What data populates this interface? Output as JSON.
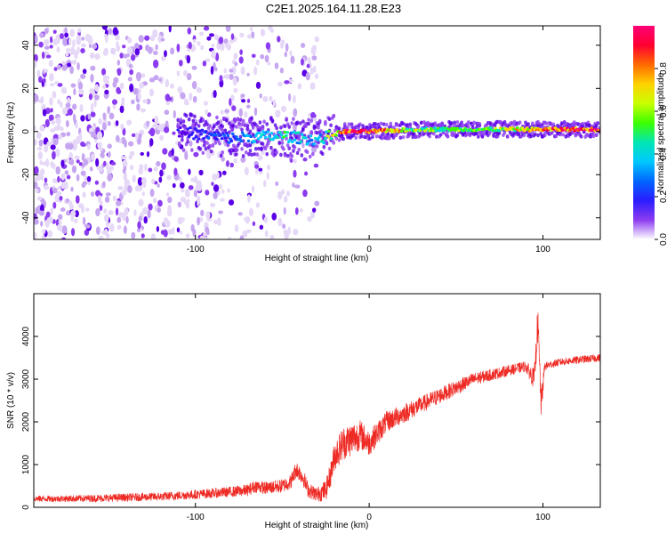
{
  "title": "C2E1.2025.164.11.28.E23",
  "colors": {
    "spectrum": [
      "#ffffff",
      "#e6d8f7",
      "#c6a6f1",
      "#8c3cf0",
      "#5a00e6",
      "#2a1cff",
      "#0066ff",
      "#00c8ff",
      "#00e6b4",
      "#3cff00",
      "#c8ff00",
      "#ffd200",
      "#ff6a00",
      "#ff0030",
      "#ff0078"
    ],
    "snr_line": "#ee2a24"
  },
  "chart_data": [
    {
      "type": "heatmap",
      "xlabel": "Height of straight line (km)",
      "ylabel": "Frequency (Hz)",
      "xlim": [
        -193,
        133
      ],
      "ylim": [
        -50,
        49
      ],
      "xticks": [
        -100,
        0,
        100
      ],
      "yticks": [
        -40,
        -20,
        0,
        20,
        40
      ],
      "colorbar": {
        "label": "Normalized spectral amplitude",
        "range": [
          0,
          1
        ],
        "ticks": [
          0.0,
          0.2,
          0.4,
          0.6,
          0.8
        ]
      },
      "features": {
        "noise_region_x": [
          -193,
          -30
        ],
        "scattered_region_x": [
          -60,
          -30
        ],
        "signal_band": [
          {
            "x": -110,
            "freq": 0,
            "amplitude": 0.15
          },
          {
            "x": -80,
            "freq": -3,
            "amplitude": 0.25
          },
          {
            "x": -50,
            "freq": -2,
            "amplitude": 0.45
          },
          {
            "x": -30,
            "freq": -4,
            "amplitude": 0.35
          },
          {
            "x": -15,
            "freq": 0,
            "amplitude": 0.9
          },
          {
            "x": 0,
            "freq": 0,
            "amplitude": 0.95
          },
          {
            "x": 30,
            "freq": 1,
            "amplitude": 0.55
          },
          {
            "x": 60,
            "freq": 1,
            "amplitude": 0.5
          },
          {
            "x": 100,
            "freq": 1,
            "amplitude": 0.8
          },
          {
            "x": 130,
            "freq": 1,
            "amplitude": 0.95
          }
        ]
      }
    },
    {
      "type": "line",
      "xlabel": "Height of straight line (km)",
      "ylabel": "SNR (10 * v/v)",
      "xlim": [
        -193,
        133
      ],
      "ylim": [
        0,
        5000
      ],
      "xticks": [
        -100,
        0,
        100
      ],
      "yticks": [
        0,
        1000,
        2000,
        3000,
        4000
      ],
      "series": [
        {
          "x": [
            -193,
            -180,
            -160,
            -140,
            -120,
            -100,
            -90,
            -80,
            -70,
            -65,
            -60,
            -50,
            -45,
            -42,
            -38,
            -35,
            -30,
            -25,
            -22,
            -20,
            -15,
            -10,
            -5,
            0,
            10,
            20,
            30,
            40,
            50,
            60,
            70,
            80,
            90,
            95,
            97,
            99,
            101,
            105,
            110,
            120,
            133
          ],
          "values": [
            200,
            200,
            210,
            230,
            250,
            300,
            330,
            360,
            400,
            500,
            450,
            500,
            600,
            900,
            700,
            400,
            300,
            400,
            800,
            1200,
            1500,
            1600,
            1700,
            1500,
            2000,
            2200,
            2400,
            2600,
            2800,
            3000,
            3100,
            3200,
            3300,
            3000,
            4300,
            2400,
            3300,
            3350,
            3400,
            3450,
            3500
          ],
          "noise": [
            150,
            150,
            170,
            190,
            200,
            220,
            230,
            250,
            280,
            300,
            300,
            330,
            350,
            400,
            400,
            350,
            350,
            500,
            600,
            700,
            800,
            800,
            700,
            600,
            500,
            450,
            400,
            380,
            350,
            300,
            280,
            250,
            250,
            500,
            900,
            700,
            200,
            180,
            180,
            180,
            180
          ]
        }
      ]
    }
  ]
}
